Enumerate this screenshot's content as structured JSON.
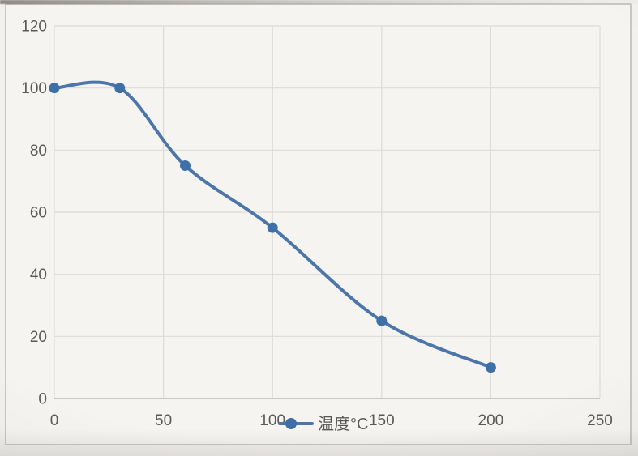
{
  "chart_data": {
    "type": "line",
    "title": "",
    "xlabel": "",
    "ylabel": "",
    "xlim": [
      0,
      250
    ],
    "ylim": [
      0,
      120
    ],
    "x_ticks": [
      0,
      50,
      100,
      150,
      200,
      250
    ],
    "y_ticks": [
      0,
      20,
      40,
      60,
      80,
      100,
      120
    ],
    "grid": true,
    "smooth": true,
    "legend_position": "bottom-center",
    "series": [
      {
        "name": "温度°C",
        "color": "#4c76a8",
        "marker_color": "#3e6fa7",
        "marker": "circle",
        "points": [
          [
            0,
            100
          ],
          [
            30,
            100
          ],
          [
            60,
            75
          ],
          [
            100,
            55
          ],
          [
            150,
            25
          ],
          [
            200,
            10
          ]
        ]
      }
    ]
  },
  "colors": {
    "background": "#f3f1ee",
    "plot_background": "#f5f4f1",
    "frame_border": "#c8c7c4",
    "gridline": "#dcdbd8",
    "axis_line": "#c2c1be",
    "tick_label": "#5a5957",
    "series_line": "#4c76a8",
    "series_marker": "#3e6fa7"
  }
}
